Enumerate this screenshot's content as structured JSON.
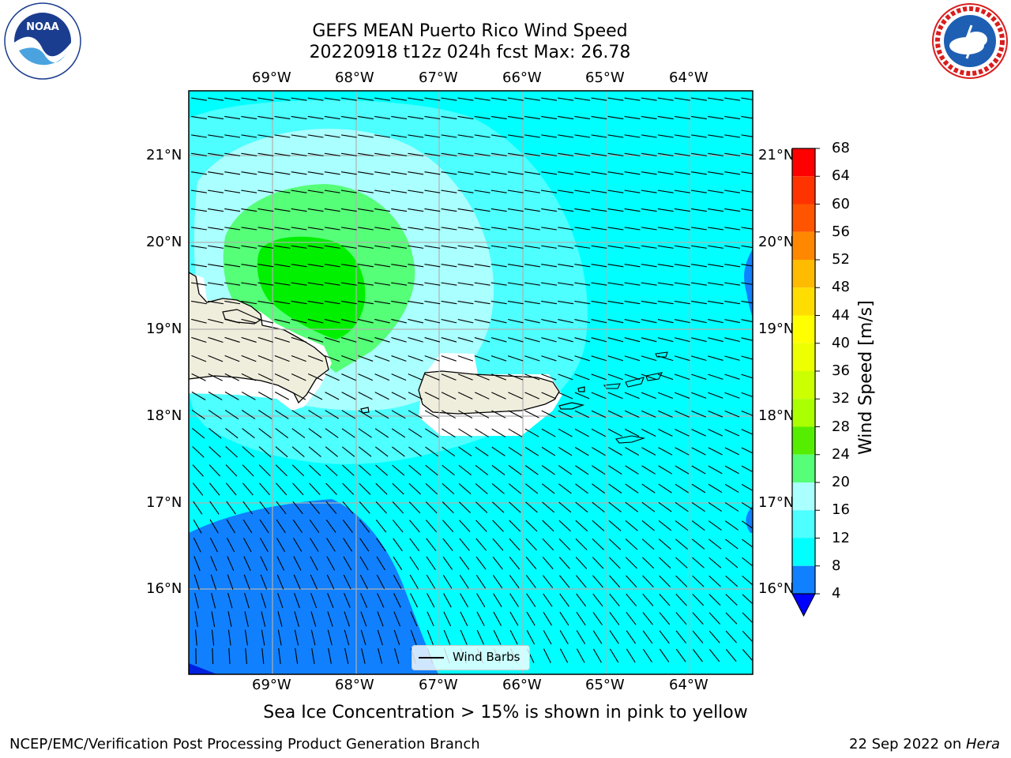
{
  "title": {
    "line1": "GEFS MEAN Puerto Rico Wind Speed",
    "line2": "20220918 t12z 024h fcst   Max: 26.78"
  },
  "logos": {
    "noaa": {
      "text": "NOAA",
      "ring": "NATIONAL OCEANIC AND ATMOSPHERIC ADMINISTRATION · U.S. DEPARTMENT OF COMMERCE"
    },
    "nws": {
      "ring": "NATIONAL WEATHER SERVICE"
    }
  },
  "map": {
    "lon_labels": [
      "69°W",
      "68°W",
      "67°W",
      "66°W",
      "65°W",
      "64°W"
    ],
    "lat_labels": [
      "21°N",
      "20°N",
      "19°N",
      "18°N",
      "17°N",
      "16°N"
    ],
    "legend_label": "Wind Barbs",
    "colors": {
      "land": "#efeddc",
      "c4_8": "#1080ff",
      "c8_12": "#00ffff",
      "c12_16": "#4dffff",
      "c16_20": "#aaffff",
      "c20_24": "#55ff77",
      "c24_28": "#00f000"
    }
  },
  "colorbar": {
    "label": "Wind Speed [m/s]",
    "ticks": [
      "68",
      "64",
      "60",
      "56",
      "52",
      "48",
      "44",
      "40",
      "36",
      "32",
      "28",
      "24",
      "20",
      "16",
      "12",
      "8",
      "4"
    ],
    "colors": [
      "#ff0000",
      "#ff3300",
      "#ff5500",
      "#ff8800",
      "#ffbb00",
      "#ffdd00",
      "#ffff00",
      "#eeff00",
      "#ccff00",
      "#aaff00",
      "#55ee00",
      "#00ee00",
      "#55ff77",
      "#aaffff",
      "#4dffff",
      "#00ffff",
      "#1080ff"
    ],
    "extend_color": "#0000ff"
  },
  "note": "Sea Ice Concentration > 15% is shown in pink to yellow",
  "footer": {
    "left": "NCEP/EMC/Verification Post Processing Product Generation Branch",
    "date": "22 Sep 2022 on ",
    "machine": "Hera"
  }
}
